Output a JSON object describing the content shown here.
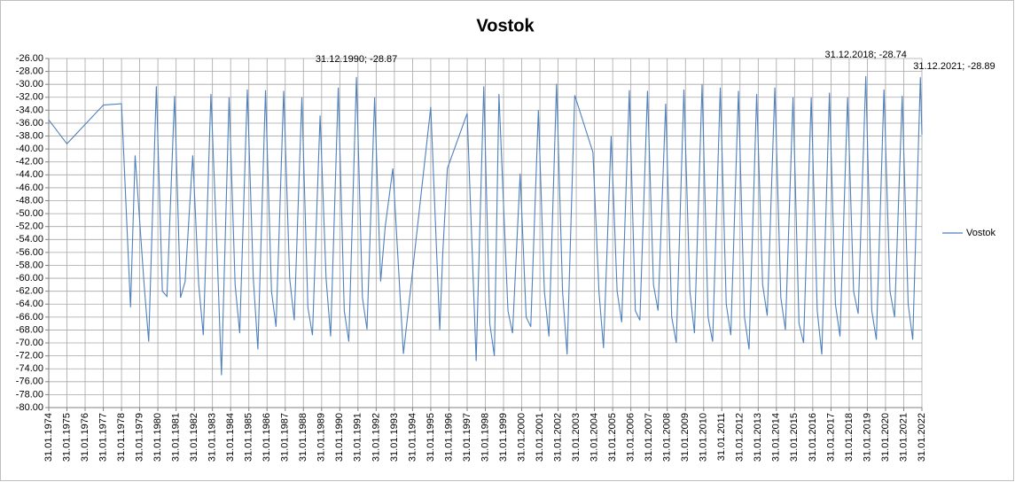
{
  "chart_data": {
    "type": "line",
    "title": "Vostok",
    "x": [
      "1974-01-31",
      "1975-01-31",
      "1977-01-31",
      "1978-01-31",
      "1978-07-31",
      "1978-10-31",
      "1979-04-30",
      "1979-07-31",
      "1979-12-31",
      "1980-04-30",
      "1980-07-31",
      "1980-12-31",
      "1981-04-30",
      "1981-07-31",
      "1981-12-31",
      "1982-04-30",
      "1982-07-31",
      "1982-12-31",
      "1983-04-30",
      "1983-07-31",
      "1983-12-31",
      "1984-04-30",
      "1984-07-31",
      "1984-12-31",
      "1985-04-30",
      "1985-07-31",
      "1985-12-31",
      "1986-04-30",
      "1986-07-31",
      "1986-12-31",
      "1987-04-30",
      "1987-07-31",
      "1987-12-31",
      "1988-04-30",
      "1988-07-31",
      "1988-12-31",
      "1989-04-30",
      "1989-07-31",
      "1989-12-31",
      "1990-04-30",
      "1990-07-31",
      "1990-12-31",
      "1991-04-30",
      "1991-07-31",
      "1991-12-31",
      "1992-04-30",
      "1992-07-31",
      "1992-12-31",
      "1993-07-31",
      "1995-01-31",
      "1995-07-31",
      "1995-09-30",
      "1995-12-31",
      "1997-01-31",
      "1997-07-31",
      "1997-12-31",
      "1998-04-30",
      "1998-07-31",
      "1998-10-31",
      "1999-04-30",
      "1999-07-31",
      "1999-12-31",
      "2000-04-30",
      "2000-07-31",
      "2000-12-31",
      "2001-04-30",
      "2001-07-31",
      "2001-12-31",
      "2002-04-30",
      "2002-07-31",
      "2002-12-31",
      "2003-12-31",
      "2004-04-30",
      "2004-07-31",
      "2004-12-31",
      "2005-04-30",
      "2005-07-31",
      "2005-12-31",
      "2006-04-30",
      "2006-07-31",
      "2006-12-31",
      "2007-04-30",
      "2007-07-31",
      "2007-12-31",
      "2008-04-30",
      "2008-07-31",
      "2008-12-31",
      "2009-04-30",
      "2009-07-31",
      "2009-12-31",
      "2010-04-30",
      "2010-07-31",
      "2010-12-31",
      "2011-04-30",
      "2011-07-31",
      "2011-12-31",
      "2012-04-30",
      "2012-07-31",
      "2012-12-31",
      "2013-04-30",
      "2013-07-31",
      "2013-12-31",
      "2014-04-30",
      "2014-07-31",
      "2014-12-31",
      "2015-04-30",
      "2015-07-31",
      "2015-12-31",
      "2016-04-30",
      "2016-07-31",
      "2016-12-31",
      "2017-04-30",
      "2017-07-31",
      "2017-12-31",
      "2018-04-30",
      "2018-07-31",
      "2018-12-31",
      "2019-04-30",
      "2019-07-31",
      "2019-12-31",
      "2020-04-30",
      "2020-07-31",
      "2020-12-31",
      "2021-04-30",
      "2021-07-31",
      "2021-12-31",
      "2022-01-31"
    ],
    "series": [
      {
        "name": "Vostok",
        "color": "#4f81bd",
        "values": [
          -35.5,
          -39.2,
          -33.2,
          -33.0,
          -64.5,
          -41,
          -61,
          -69.8,
          -30.3,
          -62,
          -62.8,
          -31.8,
          -63,
          -60.5,
          -41,
          -61,
          -68.8,
          -31.5,
          -55,
          -75,
          -32,
          -61,
          -68.5,
          -30.8,
          -60,
          -71,
          -30.9,
          -62,
          -67.5,
          -31,
          -60,
          -66.5,
          -32,
          -64.5,
          -68.8,
          -34.8,
          -60,
          -69,
          -30.5,
          -65,
          -69.8,
          -28.87,
          -63,
          -67.9,
          -32,
          -60.5,
          -52,
          -43,
          -71.7,
          -33.5,
          -68,
          -56,
          -43,
          -34.5,
          -72.8,
          -30.3,
          -67,
          -72,
          -31.5,
          -65,
          -68.5,
          -43.8,
          -66,
          -67.5,
          -34,
          -62,
          -69,
          -29.9,
          -62,
          -71.8,
          -31.7,
          -40.5,
          -62,
          -70.8,
          -38,
          -62,
          -66.8,
          -30.9,
          -65,
          -66.5,
          -31,
          -61,
          -65,
          -33,
          -66,
          -70,
          -30.8,
          -62,
          -68.5,
          -30,
          -66,
          -69.8,
          -30.5,
          -64,
          -68.8,
          -31,
          -66,
          -71,
          -31.5,
          -61,
          -65.8,
          -30.5,
          -63,
          -68,
          -32,
          -67,
          -70,
          -32,
          -65,
          -71.8,
          -31.3,
          -64,
          -69,
          -32,
          -62,
          -65.5,
          -28.74,
          -65,
          -69.5,
          -30.8,
          -62,
          -66,
          -31.8,
          -64,
          -69.5,
          -28.89,
          -37.8
        ]
      }
    ],
    "annotations": [
      {
        "text": "31.12.1990; -28.87",
        "x": "1990-12-31",
        "y": -28.87
      },
      {
        "text": "31.12.2018; -28.74",
        "x": "2018-12-31",
        "y": -28.74
      },
      {
        "text": "31.12.2021; -28.89",
        "x": "2021-12-31",
        "y": -28.89
      }
    ],
    "xlim": [
      "1974-01-31",
      "2022-01-31"
    ],
    "xticks": [
      {
        "value": "1974-01-31",
        "label": "31.01.1974"
      },
      {
        "value": "1975-01-31",
        "label": "31.01.1975"
      },
      {
        "value": "1976-01-31",
        "label": "31.01.1976"
      },
      {
        "value": "1977-01-31",
        "label": "31.01.1977"
      },
      {
        "value": "1978-01-31",
        "label": "31.01.1978"
      },
      {
        "value": "1979-01-31",
        "label": "31.01.1979"
      },
      {
        "value": "1980-01-31",
        "label": "31.01.1980"
      },
      {
        "value": "1981-01-31",
        "label": "31.01.1981"
      },
      {
        "value": "1982-01-31",
        "label": "31.01.1982"
      },
      {
        "value": "1983-01-31",
        "label": "31.01.1983"
      },
      {
        "value": "1984-01-31",
        "label": "31.01.1984"
      },
      {
        "value": "1985-01-31",
        "label": "31.01.1985"
      },
      {
        "value": "1986-01-31",
        "label": "31.01.1986"
      },
      {
        "value": "1987-01-31",
        "label": "31.01.1987"
      },
      {
        "value": "1988-01-31",
        "label": "31.01.1988"
      },
      {
        "value": "1989-01-31",
        "label": "31.01.1989"
      },
      {
        "value": "1990-01-31",
        "label": "31.01.1990"
      },
      {
        "value": "1991-01-31",
        "label": "31.01.1991"
      },
      {
        "value": "1992-01-31",
        "label": "31.01.1992"
      },
      {
        "value": "1993-01-31",
        "label": "31.01.1993"
      },
      {
        "value": "1994-01-31",
        "label": "31.01.1994"
      },
      {
        "value": "1995-01-31",
        "label": "31.01.1995"
      },
      {
        "value": "1996-01-31",
        "label": "31.01.1996"
      },
      {
        "value": "1997-01-31",
        "label": "31.01.1997"
      },
      {
        "value": "1998-01-31",
        "label": "31.01.1998"
      },
      {
        "value": "1999-01-31",
        "label": "31.01.1999"
      },
      {
        "value": "2000-01-31",
        "label": "31.01.2000"
      },
      {
        "value": "2001-01-31",
        "label": "31.01.2001"
      },
      {
        "value": "2002-01-31",
        "label": "31.01.2002"
      },
      {
        "value": "2003-01-31",
        "label": "31.01.2003"
      },
      {
        "value": "2004-01-31",
        "label": "31.01.2004"
      },
      {
        "value": "2005-01-31",
        "label": "31.01.2005"
      },
      {
        "value": "2006-01-31",
        "label": "31.01.2006"
      },
      {
        "value": "2007-01-31",
        "label": "31.01.2007"
      },
      {
        "value": "2008-01-31",
        "label": "31.01.2008"
      },
      {
        "value": "2009-01-31",
        "label": "31.01.2009"
      },
      {
        "value": "2010-01-31",
        "label": "31.01.2010"
      },
      {
        "value": "2011-01-31",
        "label": "31.01.2011"
      },
      {
        "value": "2012-01-31",
        "label": "31.01.2012"
      },
      {
        "value": "2013-01-31",
        "label": "31.01.2013"
      },
      {
        "value": "2014-01-31",
        "label": "31.01.2014"
      },
      {
        "value": "2015-01-31",
        "label": "31.01.2015"
      },
      {
        "value": "2016-01-31",
        "label": "31.01.2016"
      },
      {
        "value": "2017-01-31",
        "label": "31.01.2017"
      },
      {
        "value": "2018-01-31",
        "label": "31.01.2018"
      },
      {
        "value": "2019-01-31",
        "label": "31.01.2019"
      },
      {
        "value": "2020-01-31",
        "label": "31.01.2020"
      },
      {
        "value": "2021-01-31",
        "label": "31.01.2021"
      },
      {
        "value": "2022-01-31",
        "label": "31.01.2022"
      }
    ],
    "ylim": [
      -80,
      -26
    ],
    "yticks": [
      {
        "value": -26,
        "label": "-26.00"
      },
      {
        "value": -28,
        "label": "-28.00"
      },
      {
        "value": -30,
        "label": "-30.00"
      },
      {
        "value": -32,
        "label": "-32.00"
      },
      {
        "value": -34,
        "label": "-34.00"
      },
      {
        "value": -36,
        "label": "-36.00"
      },
      {
        "value": -38,
        "label": "-38.00"
      },
      {
        "value": -40,
        "label": "-40.00"
      },
      {
        "value": -42,
        "label": "-42.00"
      },
      {
        "value": -44,
        "label": "-44.00"
      },
      {
        "value": -46,
        "label": "-46.00"
      },
      {
        "value": -48,
        "label": "-48.00"
      },
      {
        "value": -50,
        "label": "-50.00"
      },
      {
        "value": -52,
        "label": "-52.00"
      },
      {
        "value": -54,
        "label": "-54.00"
      },
      {
        "value": -56,
        "label": "-56.00"
      },
      {
        "value": -58,
        "label": "-58.00"
      },
      {
        "value": -60,
        "label": "-60.00"
      },
      {
        "value": -62,
        "label": "-62.00"
      },
      {
        "value": -64,
        "label": "-64.00"
      },
      {
        "value": -66,
        "label": "-66.00"
      },
      {
        "value": -68,
        "label": "-68.00"
      },
      {
        "value": -70,
        "label": "-70.00"
      },
      {
        "value": -72,
        "label": "-72.00"
      },
      {
        "value": -74,
        "label": "-74.00"
      },
      {
        "value": -76,
        "label": "-76.00"
      },
      {
        "value": -78,
        "label": "-78.00"
      },
      {
        "value": -80,
        "label": "-80.00"
      }
    ],
    "grid": true,
    "legend": "right"
  }
}
